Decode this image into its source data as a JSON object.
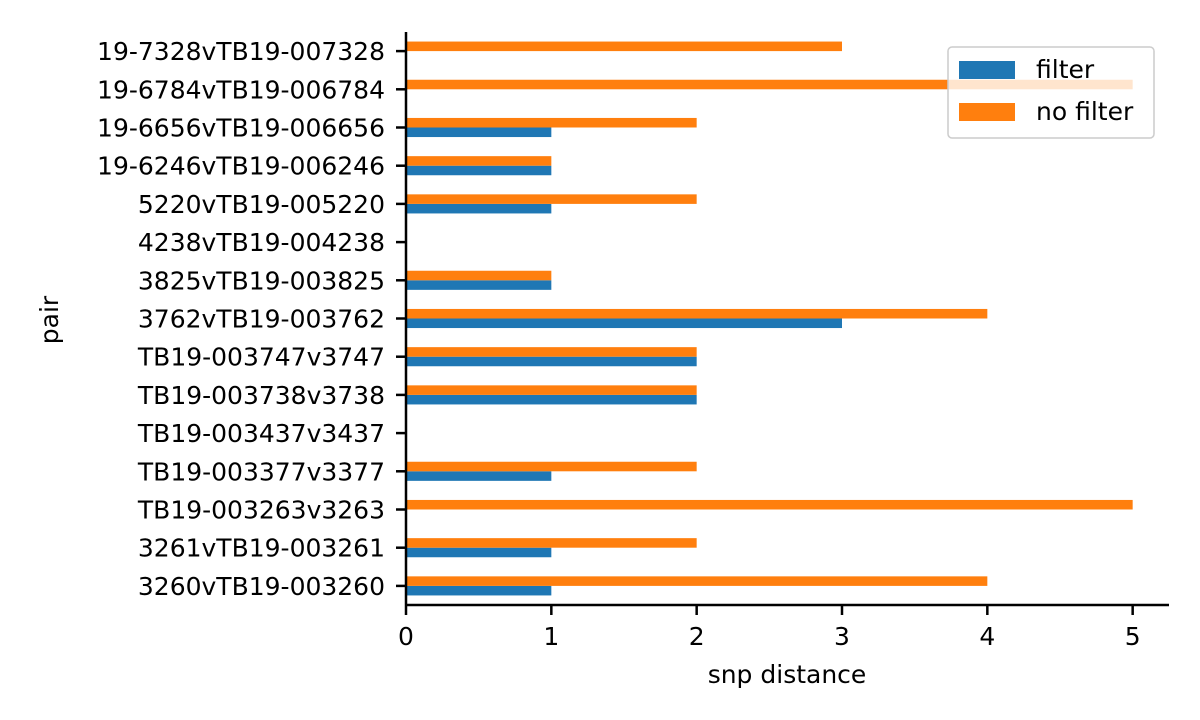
{
  "chart_data": {
    "type": "bar",
    "orientation": "horizontal",
    "title": "",
    "xlabel": "snp distance",
    "ylabel": "pair",
    "xlim": [
      0,
      5.25
    ],
    "xticks": [
      0,
      1,
      2,
      3,
      4,
      5
    ],
    "grid": false,
    "legend_position": "top-right",
    "categories": [
      "3260vTB19-003260",
      "3261vTB19-003261",
      "TB19-003263v3263",
      "TB19-003377v3377",
      "TB19-003437v3437",
      "TB19-003738v3738",
      "TB19-003747v3747",
      "3762vTB19-003762",
      "3825vTB19-003825",
      "4238vTB19-004238",
      "5220vTB19-005220",
      "19-6246vTB19-006246",
      "19-6656vTB19-006656",
      "19-6784vTB19-006784",
      "19-7328vTB19-007328"
    ],
    "series": [
      {
        "name": "filter",
        "color": "#1f77b4",
        "values": [
          1,
          1,
          0,
          1,
          0,
          2,
          2,
          3,
          1,
          0,
          1,
          1,
          1,
          0,
          0
        ]
      },
      {
        "name": "no filter",
        "color": "#ff7f0e",
        "values": [
          4,
          2,
          5,
          2,
          0,
          2,
          2,
          4,
          1,
          0,
          2,
          1,
          2,
          5,
          3
        ]
      }
    ]
  }
}
